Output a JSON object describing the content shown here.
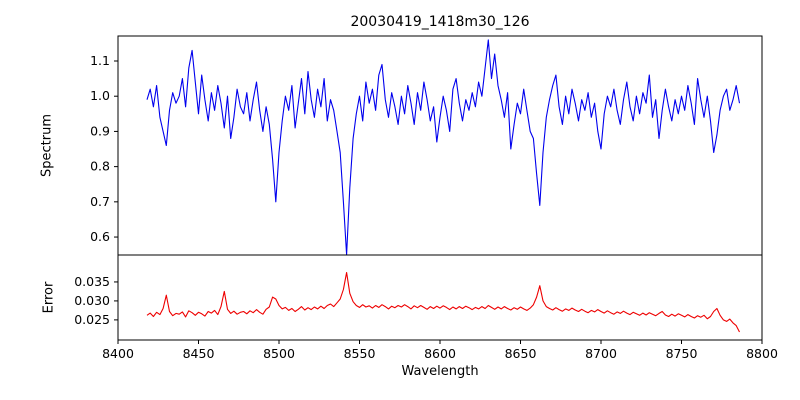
{
  "figure": {
    "title": "20030419_1418m30_126"
  },
  "chart_data": {
    "type": "line",
    "title": "20030419_1418m30_126",
    "xlabel": "Wavelength",
    "x_start": 8418,
    "x_step": 2,
    "xlim": [
      8400,
      8800
    ],
    "x_ticks": [
      8400,
      8450,
      8500,
      8550,
      8600,
      8650,
      8700,
      8750,
      8800
    ],
    "grid": false,
    "legend": "none",
    "panels": [
      {
        "name": "spectrum",
        "ylabel": "Spectrum",
        "color": "#0000ee",
        "ylim": [
          0.549,
          1.171
        ],
        "y_ticks": [
          0.6,
          0.7,
          0.8,
          0.9,
          1.0,
          1.1
        ],
        "y_tick_labels": [
          "0.6",
          "0.7",
          "0.8",
          "0.9",
          "1.0",
          "1.1"
        ],
        "annotations": [
          "absorption lines near 8498, 8542 (deepest, ~0.55), 8662"
        ],
        "values": [
          0.99,
          1.02,
          0.97,
          1.03,
          0.94,
          0.9,
          0.86,
          0.96,
          1.01,
          0.98,
          1.0,
          1.05,
          0.97,
          1.08,
          1.13,
          1.04,
          0.95,
          1.06,
          0.99,
          0.93,
          1.01,
          0.96,
          1.03,
          0.98,
          0.91,
          1.0,
          0.88,
          0.94,
          1.02,
          0.97,
          0.95,
          1.01,
          0.93,
          0.99,
          1.04,
          0.96,
          0.9,
          0.97,
          0.92,
          0.82,
          0.7,
          0.84,
          0.93,
          1.0,
          0.96,
          1.03,
          0.91,
          0.98,
          1.05,
          0.95,
          1.07,
          0.99,
          0.94,
          1.02,
          0.97,
          1.05,
          0.93,
          0.99,
          0.96,
          0.9,
          0.84,
          0.7,
          0.55,
          0.74,
          0.88,
          0.95,
          1.0,
          0.93,
          1.04,
          0.98,
          1.02,
          0.96,
          1.06,
          1.09,
          0.99,
          0.94,
          1.01,
          0.97,
          0.92,
          1.0,
          0.95,
          1.03,
          0.98,
          0.92,
          1.01,
          0.96,
          1.04,
          0.99,
          0.93,
          0.97,
          0.87,
          0.94,
          1.0,
          0.96,
          0.9,
          1.02,
          1.05,
          0.98,
          0.93,
          0.99,
          0.96,
          1.01,
          0.97,
          1.04,
          1.0,
          1.08,
          1.16,
          1.05,
          1.12,
          1.03,
          0.99,
          0.94,
          1.01,
          0.85,
          0.92,
          0.98,
          0.95,
          1.02,
          0.96,
          0.9,
          0.88,
          0.78,
          0.69,
          0.84,
          0.94,
          0.99,
          1.03,
          1.06,
          0.97,
          0.92,
          1.0,
          0.95,
          1.02,
          0.98,
          0.93,
          0.99,
          0.96,
          1.01,
          0.94,
          0.98,
          0.9,
          0.85,
          0.95,
          1.0,
          0.97,
          1.02,
          0.96,
          0.92,
          0.99,
          1.04,
          0.97,
          0.93,
          1.0,
          0.95,
          1.01,
          0.98,
          1.06,
          0.94,
          0.99,
          0.88,
          0.96,
          1.02,
          0.97,
          0.93,
          0.99,
          0.95,
          1.0,
          0.96,
          1.03,
          0.98,
          0.92,
          1.05,
          0.99,
          0.94,
          1.0,
          0.93,
          0.84,
          0.89,
          0.96,
          1.0,
          1.02,
          0.96,
          0.99,
          1.03,
          0.98
        ]
      },
      {
        "name": "error",
        "ylabel": "Error",
        "color": "#ee0000",
        "ylim": [
          0.0197,
          0.0421
        ],
        "y_ticks": [
          0.025,
          0.03,
          0.035
        ],
        "y_tick_labels": [
          "0.025",
          "0.030",
          "0.035"
        ],
        "annotations": [
          "spikes near 8430, 8466, 8498, 8542 (peak ~0.037), 8662; tail drops to ~0.022"
        ],
        "values": [
          0.0262,
          0.0268,
          0.0259,
          0.027,
          0.0264,
          0.028,
          0.0315,
          0.0272,
          0.0261,
          0.0267,
          0.0265,
          0.0271,
          0.0258,
          0.0274,
          0.0269,
          0.0262,
          0.027,
          0.0266,
          0.026,
          0.0272,
          0.0268,
          0.0275,
          0.0264,
          0.0285,
          0.0325,
          0.0278,
          0.0267,
          0.0273,
          0.0265,
          0.027,
          0.0272,
          0.0266,
          0.0274,
          0.0269,
          0.0277,
          0.027,
          0.0265,
          0.0278,
          0.0284,
          0.031,
          0.0305,
          0.0288,
          0.0279,
          0.0283,
          0.0275,
          0.028,
          0.0272,
          0.0278,
          0.0285,
          0.0276,
          0.0282,
          0.0277,
          0.0284,
          0.0279,
          0.0286,
          0.028,
          0.0288,
          0.0292,
          0.0285,
          0.0295,
          0.0305,
          0.033,
          0.0375,
          0.032,
          0.0298,
          0.0288,
          0.0283,
          0.029,
          0.0284,
          0.0287,
          0.0281,
          0.0288,
          0.0283,
          0.029,
          0.0285,
          0.0279,
          0.0286,
          0.0282,
          0.0288,
          0.0284,
          0.029,
          0.0285,
          0.0279,
          0.0287,
          0.0282,
          0.0288,
          0.0283,
          0.0278,
          0.0285,
          0.028,
          0.0286,
          0.0281,
          0.0287,
          0.0283,
          0.0277,
          0.0284,
          0.0279,
          0.0285,
          0.028,
          0.0286,
          0.0282,
          0.0277,
          0.0283,
          0.0279,
          0.0285,
          0.028,
          0.0288,
          0.0283,
          0.0278,
          0.0284,
          0.0279,
          0.0285,
          0.028,
          0.0276,
          0.0282,
          0.0278,
          0.0284,
          0.0279,
          0.0275,
          0.0281,
          0.029,
          0.031,
          0.034,
          0.03,
          0.0285,
          0.028,
          0.0276,
          0.0282,
          0.0277,
          0.0273,
          0.0279,
          0.0275,
          0.0281,
          0.0276,
          0.0272,
          0.0278,
          0.0273,
          0.0269,
          0.0275,
          0.0271,
          0.0277,
          0.0272,
          0.0268,
          0.0274,
          0.0269,
          0.0265,
          0.0271,
          0.0267,
          0.0273,
          0.0268,
          0.0264,
          0.027,
          0.0266,
          0.0262,
          0.0268,
          0.0263,
          0.0269,
          0.0265,
          0.0261,
          0.0267,
          0.0272,
          0.0263,
          0.0259,
          0.0265,
          0.026,
          0.0266,
          0.0262,
          0.0258,
          0.0264,
          0.0259,
          0.0255,
          0.0261,
          0.0257,
          0.0262,
          0.0253,
          0.0259,
          0.0272,
          0.028,
          0.0262,
          0.025,
          0.0246,
          0.0252,
          0.0242,
          0.0235,
          0.0218
        ]
      }
    ]
  }
}
